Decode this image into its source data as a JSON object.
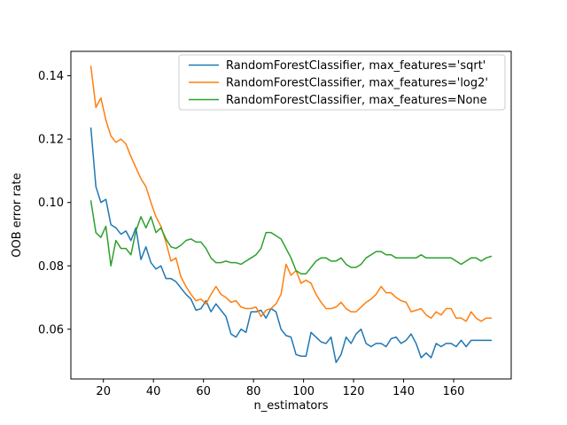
{
  "figure": {
    "background": "#ffffff"
  },
  "chart_data": {
    "type": "line",
    "title": "",
    "xlabel": "n_estimators",
    "ylabel": "OOB error rate",
    "xlim": [
      7,
      183
    ],
    "ylim": [
      0.0443,
      0.1477
    ],
    "xticks": [
      20,
      40,
      60,
      80,
      100,
      120,
      140,
      160
    ],
    "yticks": [
      0.06,
      0.08,
      0.1,
      0.12,
      0.14
    ],
    "ytick_labels": [
      "0.06",
      "0.08",
      "0.10",
      "0.12",
      "0.14"
    ],
    "grid": false,
    "legend": {
      "position": "upper-right"
    },
    "x": [
      15,
      17,
      19,
      21,
      23,
      25,
      27,
      29,
      31,
      33,
      35,
      37,
      39,
      41,
      43,
      45,
      47,
      49,
      51,
      53,
      55,
      57,
      59,
      61,
      63,
      65,
      67,
      69,
      71,
      73,
      75,
      77,
      79,
      81,
      83,
      85,
      87,
      89,
      91,
      93,
      95,
      97,
      99,
      101,
      103,
      105,
      107,
      109,
      111,
      113,
      115,
      117,
      119,
      121,
      123,
      125,
      127,
      129,
      131,
      133,
      135,
      137,
      139,
      141,
      143,
      145,
      147,
      149,
      151,
      153,
      155,
      157,
      159,
      161,
      163,
      165,
      167,
      169,
      171,
      173,
      175
    ],
    "series": [
      {
        "name": "RandomForestClassifier, max_features='sqrt'",
        "color": "#1f77b4",
        "values": [
          0.1235,
          0.105,
          0.1,
          0.101,
          0.093,
          0.092,
          0.09,
          0.091,
          0.088,
          0.092,
          0.082,
          0.086,
          0.081,
          0.079,
          0.08,
          0.076,
          0.076,
          0.075,
          0.073,
          0.071,
          0.0695,
          0.066,
          0.0665,
          0.069,
          0.0655,
          0.068,
          0.066,
          0.064,
          0.0585,
          0.0575,
          0.06,
          0.059,
          0.0655,
          0.0655,
          0.066,
          0.0635,
          0.0665,
          0.0655,
          0.06,
          0.058,
          0.0575,
          0.052,
          0.0515,
          0.0515,
          0.059,
          0.0575,
          0.056,
          0.0555,
          0.0575,
          0.0495,
          0.052,
          0.0575,
          0.0555,
          0.0585,
          0.06,
          0.0555,
          0.0545,
          0.0555,
          0.0555,
          0.0545,
          0.057,
          0.0575,
          0.0555,
          0.0565,
          0.0585,
          0.0555,
          0.051,
          0.0525,
          0.051,
          0.0555,
          0.0545,
          0.0555,
          0.0555,
          0.0545,
          0.0565,
          0.0545,
          0.0565,
          0.0565,
          0.0565,
          0.0565,
          0.0565
        ]
      },
      {
        "name": "RandomForestClassifier, max_features='log2'",
        "color": "#ff7f0e",
        "values": [
          0.143,
          0.13,
          0.133,
          0.126,
          0.121,
          0.119,
          0.12,
          0.1185,
          0.1145,
          0.111,
          0.1075,
          0.105,
          0.1,
          0.0955,
          0.0925,
          0.0875,
          0.0815,
          0.0825,
          0.0765,
          0.0735,
          0.071,
          0.069,
          0.0695,
          0.068,
          0.071,
          0.0735,
          0.071,
          0.07,
          0.0685,
          0.069,
          0.067,
          0.0665,
          0.0665,
          0.067,
          0.064,
          0.066,
          0.0665,
          0.068,
          0.071,
          0.0805,
          0.077,
          0.0785,
          0.0745,
          0.0755,
          0.0745,
          0.071,
          0.0685,
          0.0665,
          0.0665,
          0.067,
          0.0685,
          0.0665,
          0.0655,
          0.0655,
          0.067,
          0.0685,
          0.0695,
          0.071,
          0.0735,
          0.0715,
          0.0715,
          0.07,
          0.069,
          0.0685,
          0.0655,
          0.066,
          0.0665,
          0.0645,
          0.0635,
          0.0655,
          0.0645,
          0.0665,
          0.0665,
          0.0635,
          0.0635,
          0.0625,
          0.0655,
          0.0635,
          0.0625,
          0.0635,
          0.0635
        ]
      },
      {
        "name": "RandomForestClassifier, max_features=None",
        "color": "#2ca02c",
        "values": [
          0.1005,
          0.0905,
          0.089,
          0.0925,
          0.08,
          0.088,
          0.0855,
          0.0855,
          0.0835,
          0.091,
          0.0955,
          0.092,
          0.0955,
          0.0905,
          0.092,
          0.0885,
          0.086,
          0.0855,
          0.0865,
          0.088,
          0.0885,
          0.0875,
          0.0875,
          0.0855,
          0.0825,
          0.081,
          0.081,
          0.0815,
          0.081,
          0.081,
          0.0805,
          0.0815,
          0.0825,
          0.0835,
          0.0855,
          0.0905,
          0.0905,
          0.0895,
          0.0885,
          0.0855,
          0.0825,
          0.0785,
          0.0775,
          0.0775,
          0.0795,
          0.0815,
          0.0825,
          0.0825,
          0.0815,
          0.0815,
          0.0825,
          0.0805,
          0.0795,
          0.0795,
          0.0805,
          0.0825,
          0.0835,
          0.0845,
          0.0845,
          0.0835,
          0.0835,
          0.0825,
          0.0825,
          0.0825,
          0.0825,
          0.0825,
          0.0835,
          0.0825,
          0.0825,
          0.0825,
          0.0825,
          0.0825,
          0.0825,
          0.0815,
          0.0805,
          0.0815,
          0.0825,
          0.0825,
          0.0815,
          0.0825,
          0.083
        ]
      }
    ]
  }
}
